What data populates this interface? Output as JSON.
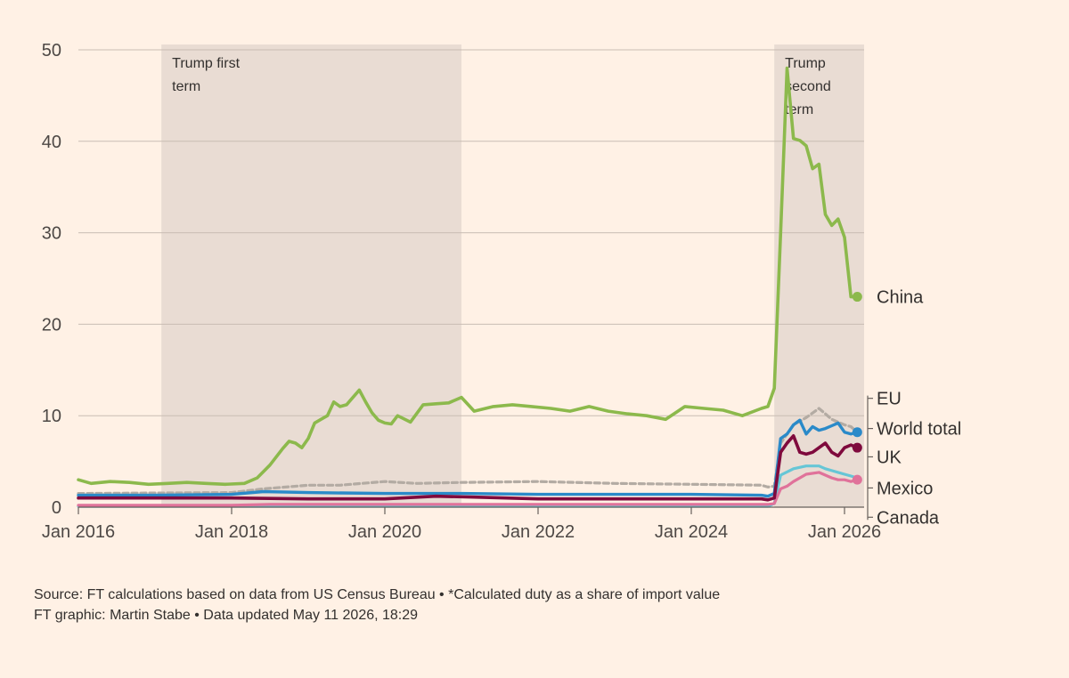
{
  "chart_data": {
    "type": "line",
    "ylim": [
      0,
      50
    ],
    "yticks": [
      0,
      10,
      20,
      30,
      40,
      50
    ],
    "xlim": [
      "2016-01",
      "2026-04"
    ],
    "xticks": [
      {
        "date": "2016-01",
        "label": "Jan 2016"
      },
      {
        "date": "2018-01",
        "label": "Jan 2018"
      },
      {
        "date": "2020-01",
        "label": "Jan 2020"
      },
      {
        "date": "2022-01",
        "label": "Jan 2022"
      },
      {
        "date": "2024-01",
        "label": "Jan 2024"
      },
      {
        "date": "2026-01",
        "label": "Jan 2026"
      }
    ],
    "grid": true,
    "shaded_periods": [
      {
        "label": "Trump first term",
        "lines": [
          "Trump first",
          "term"
        ],
        "start": "2017-02",
        "end": "2021-01"
      },
      {
        "label": "Trump second term",
        "lines": [
          "Trump",
          "second",
          "term"
        ],
        "start": "2025-02",
        "end": "2026-04"
      }
    ],
    "end_labels": [
      {
        "name": "China",
        "value": 23
      },
      {
        "name": "EU",
        "value": 11.9
      },
      {
        "name": "World total",
        "value": 8.6
      },
      {
        "name": "UK",
        "value": 5.5
      },
      {
        "name": "Mexico",
        "value": 2.1
      },
      {
        "name": "Canada",
        "value": -1.1
      }
    ],
    "series": [
      {
        "name": "China",
        "color": "#8cb94c",
        "dash": "",
        "width": 3.6,
        "end_dot": true,
        "x": [
          "2016-01",
          "2016-03",
          "2016-06",
          "2016-09",
          "2016-12",
          "2017-03",
          "2017-06",
          "2017-09",
          "2017-12",
          "2018-03",
          "2018-05",
          "2018-07",
          "2018-09",
          "2018-10",
          "2018-11",
          "2018-12",
          "2019-01",
          "2019-02",
          "2019-03",
          "2019-04",
          "2019-05",
          "2019-06",
          "2019-07",
          "2019-08",
          "2019-09",
          "2019-10",
          "2019-11",
          "2019-12",
          "2020-01",
          "2020-02",
          "2020-03",
          "2020-05",
          "2020-07",
          "2020-09",
          "2020-11",
          "2021-01",
          "2021-03",
          "2021-06",
          "2021-09",
          "2021-12",
          "2022-03",
          "2022-06",
          "2022-09",
          "2022-12",
          "2023-03",
          "2023-06",
          "2023-09",
          "2023-12",
          "2024-03",
          "2024-06",
          "2024-09",
          "2024-12",
          "2025-01",
          "2025-02",
          "2025-03",
          "2025-04",
          "2025-05",
          "2025-06",
          "2025-07",
          "2025-08",
          "2025-09",
          "2025-10",
          "2025-11",
          "2025-12",
          "2026-01",
          "2026-02",
          "2026-03"
        ],
        "values": [
          3.0,
          2.6,
          2.8,
          2.7,
          2.5,
          2.6,
          2.7,
          2.6,
          2.5,
          2.6,
          3.2,
          4.6,
          6.4,
          7.2,
          7.0,
          6.5,
          7.5,
          9.2,
          9.6,
          10.0,
          11.5,
          11.0,
          11.2,
          12.0,
          12.8,
          11.5,
          10.3,
          9.5,
          9.2,
          9.1,
          10.0,
          9.3,
          11.2,
          11.3,
          11.4,
          12.0,
          10.5,
          11.0,
          11.2,
          11.0,
          10.8,
          10.5,
          11.0,
          10.5,
          10.2,
          10.0,
          9.6,
          11.0,
          10.8,
          10.6,
          10.0,
          10.8,
          11.0,
          13.0,
          30.0,
          48.0,
          40.3,
          40.1,
          39.5,
          37.0,
          37.5,
          32.0,
          30.8,
          31.5,
          29.5,
          23.0,
          23.0
        ]
      },
      {
        "name": "EU",
        "color": "#b3aba3",
        "dash": "6,4",
        "width": 3.2,
        "end_dot": false,
        "x": [
          "2016-01",
          "2018-01",
          "2018-06",
          "2019-01",
          "2019-06",
          "2020-01",
          "2020-06",
          "2021-01",
          "2022-01",
          "2023-01",
          "2024-01",
          "2024-12",
          "2025-01",
          "2025-02",
          "2025-03",
          "2025-05",
          "2025-07",
          "2025-09",
          "2025-10",
          "2025-11",
          "2025-12",
          "2026-01",
          "2026-02",
          "2026-03"
        ],
        "values": [
          1.5,
          1.6,
          2.0,
          2.4,
          2.4,
          2.8,
          2.6,
          2.7,
          2.8,
          2.6,
          2.5,
          2.4,
          2.2,
          2.3,
          7.0,
          9.0,
          9.8,
          10.8,
          10.2,
          9.6,
          9.3,
          9.0,
          8.8,
          8.2
        ]
      },
      {
        "name": "Canada",
        "color": "#66c6d6",
        "dash": "",
        "width": 3.2,
        "end_dot": false,
        "x": [
          "2016-01",
          "2018-01",
          "2020-01",
          "2022-01",
          "2024-01",
          "2025-01",
          "2025-02",
          "2025-03",
          "2025-05",
          "2025-07",
          "2025-09",
          "2025-10",
          "2025-11",
          "2025-12",
          "2026-01",
          "2026-02",
          "2026-03"
        ],
        "values": [
          0.1,
          0.1,
          0.1,
          0.1,
          0.1,
          0.1,
          0.4,
          3.5,
          4.2,
          4.5,
          4.5,
          4.2,
          4.0,
          3.8,
          3.6,
          3.4,
          3.2
        ]
      },
      {
        "name": "Mexico",
        "color": "#e0729a",
        "dash": "",
        "width": 3.2,
        "end_dot": true,
        "x": [
          "2016-01",
          "2018-01",
          "2018-07",
          "2020-01",
          "2022-01",
          "2024-01",
          "2025-01",
          "2025-02",
          "2025-03",
          "2025-04",
          "2025-05",
          "2025-07",
          "2025-09",
          "2025-10",
          "2025-11",
          "2025-12",
          "2026-01",
          "2026-02",
          "2026-03"
        ],
        "values": [
          0.2,
          0.2,
          0.3,
          0.3,
          0.3,
          0.3,
          0.3,
          0.4,
          2.0,
          2.3,
          2.8,
          3.6,
          3.8,
          3.5,
          3.2,
          3.0,
          3.0,
          2.8,
          3.0
        ]
      },
      {
        "name": "World total",
        "color": "#2a8ac9",
        "dash": "",
        "width": 3.4,
        "end_dot": true,
        "x": [
          "2016-01",
          "2017-01",
          "2018-01",
          "2018-06",
          "2019-01",
          "2020-01",
          "2021-01",
          "2022-01",
          "2023-01",
          "2024-01",
          "2024-12",
          "2025-01",
          "2025-02",
          "2025-03",
          "2025-04",
          "2025-05",
          "2025-06",
          "2025-07",
          "2025-08",
          "2025-09",
          "2025-10",
          "2025-11",
          "2025-12",
          "2026-01",
          "2026-02",
          "2026-03"
        ],
        "values": [
          1.3,
          1.3,
          1.4,
          1.7,
          1.6,
          1.5,
          1.5,
          1.4,
          1.4,
          1.4,
          1.3,
          1.2,
          1.5,
          7.5,
          8.0,
          9.0,
          9.5,
          8.0,
          8.8,
          8.4,
          8.6,
          8.9,
          9.2,
          8.2,
          8.0,
          8.2
        ]
      },
      {
        "name": "UK",
        "color": "#7f0a3d",
        "dash": "",
        "width": 3.6,
        "end_dot": true,
        "x": [
          "2016-01",
          "2017-01",
          "2018-01",
          "2019-01",
          "2020-01",
          "2020-09",
          "2021-03",
          "2022-01",
          "2023-01",
          "2024-01",
          "2024-12",
          "2025-01",
          "2025-02",
          "2025-03",
          "2025-04",
          "2025-05",
          "2025-06",
          "2025-07",
          "2025-08",
          "2025-09",
          "2025-10",
          "2025-11",
          "2025-12",
          "2026-01",
          "2026-02",
          "2026-03"
        ],
        "values": [
          1.0,
          1.0,
          1.0,
          0.9,
          0.9,
          1.2,
          1.1,
          0.9,
          0.9,
          0.9,
          0.9,
          0.8,
          1.0,
          6.0,
          7.0,
          7.8,
          6.0,
          5.8,
          6.0,
          6.5,
          7.0,
          6.0,
          5.6,
          6.5,
          6.8,
          6.5
        ]
      }
    ]
  },
  "footer": {
    "source": "Source: FT calculations based on data from US Census Bureau • *Calculated duty as a share of import value",
    "credit": "FT graphic: Martin Stabe • Data updated May 11 2026, 18:29"
  }
}
